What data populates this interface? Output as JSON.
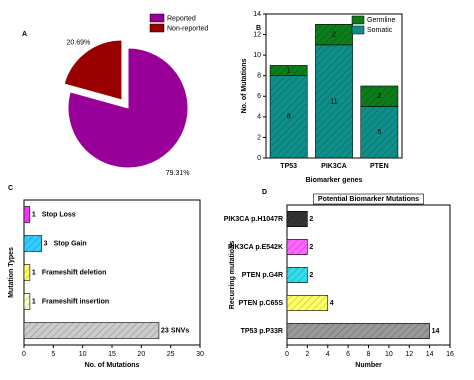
{
  "chart_data": [
    {
      "type": "pie",
      "panel_label": "A",
      "categories": [
        "Reported",
        "Non-reported"
      ],
      "values": [
        79.31,
        20.69
      ],
      "value_labels": [
        "79.31%",
        "20.69%"
      ],
      "colors": [
        "#990099",
        "#990000"
      ],
      "legend": "upper right"
    },
    {
      "type": "stacked_bar",
      "panel_label": "B",
      "categories": [
        "TP53",
        "PIK3CA",
        "PTEN"
      ],
      "series": [
        {
          "name": "Somatic",
          "color": "#0f8f8a",
          "values": [
            8,
            11,
            5
          ]
        },
        {
          "name": "Germline",
          "color": "#0b7d1a",
          "values": [
            1,
            2,
            2
          ]
        }
      ],
      "xlabel": "Biomarker genes",
      "ylabel": "No. of Mutations",
      "ylim": [
        0,
        14
      ],
      "yticks": [
        0,
        2,
        4,
        6,
        8,
        10,
        12,
        14
      ],
      "legend": "upper right"
    },
    {
      "type": "barh",
      "panel_label": "C",
      "categories": [
        "Stop Loss",
        "Stop Gain",
        "Frameshift deletion",
        "Frameshift insertion",
        "SNVs"
      ],
      "values": [
        1,
        3,
        1,
        1,
        23
      ],
      "colors": [
        "#ff33ff",
        "#33ccff",
        "#ffff66",
        "#ffffcc",
        "#cccccc"
      ],
      "xlabel": "No. of Mutations",
      "ylabel": "Mutation Types",
      "xlim": [
        0,
        30
      ],
      "xticks": [
        0,
        5,
        10,
        15,
        20,
        25,
        30
      ],
      "category_labels": "bar end"
    },
    {
      "type": "barh",
      "panel_label": "D",
      "title": "Potential Biomarker Mutations",
      "categories": [
        "PIK3CA p.H1047R",
        "PIK3CA p.E542K",
        "PTEN p.G4R",
        "PTEN p.C65S",
        "TP53 p.P33R"
      ],
      "values": [
        2,
        2,
        2,
        4,
        14
      ],
      "colors": [
        "#333333",
        "#ff66ff",
        "#33ddee",
        "#ffff66",
        "#999999"
      ],
      "xlabel": "Number",
      "ylabel": "Recurring mutations",
      "xlim": [
        0,
        16
      ],
      "xticks": [
        0,
        2,
        4,
        6,
        8,
        10,
        12,
        14,
        16
      ],
      "category_labels": "axis"
    }
  ]
}
